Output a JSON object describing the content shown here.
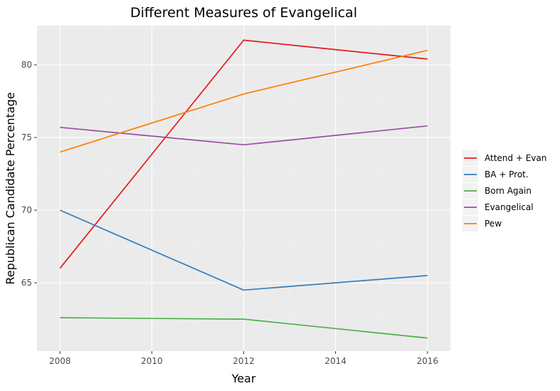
{
  "chart_data": {
    "type": "line",
    "title": "Different Measures of Evangelical",
    "xlabel": "Year",
    "ylabel": "Republican Candidate Percentage",
    "x": [
      2008,
      2012,
      2016
    ],
    "xlim": [
      2007.5,
      2016.5
    ],
    "ylim": [
      60.3,
      82.7
    ],
    "xticks": [
      2008,
      2010,
      2012,
      2014,
      2016
    ],
    "yticks": [
      65,
      70,
      75,
      80
    ],
    "grid": true,
    "legend_position": "right",
    "series": [
      {
        "name": "Attend + Evan",
        "color": "#e41a1c",
        "values": [
          66.0,
          81.7,
          80.4
        ]
      },
      {
        "name": "BA + Prot.",
        "color": "#377eb8",
        "values": [
          70.0,
          64.5,
          65.5
        ]
      },
      {
        "name": "Born Again",
        "color": "#4daf4a",
        "values": [
          62.6,
          62.5,
          61.2
        ]
      },
      {
        "name": "Evangelical",
        "color": "#984ea3",
        "values": [
          75.7,
          74.5,
          75.8
        ]
      },
      {
        "name": "Pew",
        "color": "#ff7f00",
        "values": [
          74.0,
          78.0,
          81.0
        ]
      }
    ]
  }
}
